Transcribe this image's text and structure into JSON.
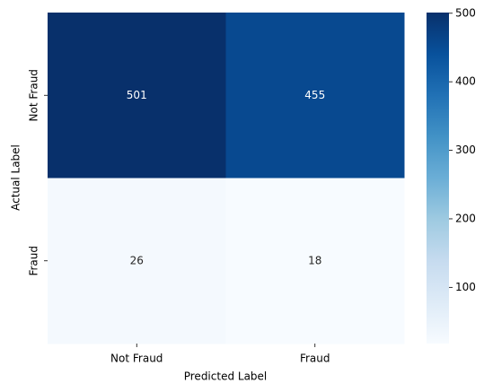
{
  "chart_data": {
    "type": "heatmap",
    "x_categories": [
      "Not Fraud",
      "Fraud"
    ],
    "y_categories": [
      "Not Fraud",
      "Fraud"
    ],
    "values": [
      [
        501,
        455
      ],
      [
        26,
        18
      ]
    ],
    "xlabel": "Predicted Label",
    "ylabel": "Actual Label",
    "colormap": "Blues",
    "colorbar_lim": [
      18,
      501
    ],
    "colorbar_ticks": [
      100,
      200,
      300,
      400,
      500
    ]
  }
}
